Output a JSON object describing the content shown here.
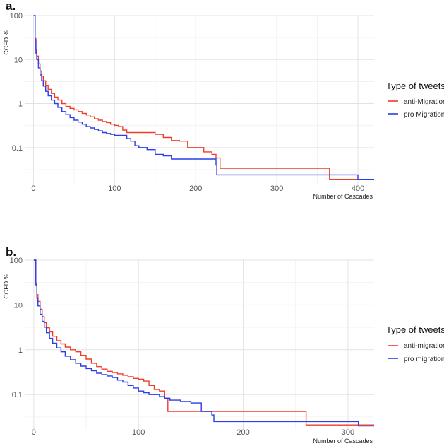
{
  "chart_data": [
    {
      "panel": "a.",
      "type": "line",
      "title": "",
      "xlabel": "Number of Cascades",
      "ylabel": "CCFD %",
      "x_ticks": [
        0,
        100,
        200,
        300,
        400
      ],
      "y_ticks": [
        100,
        10,
        1,
        0.1
      ],
      "y_tick_labels": [
        "100",
        "10",
        "1",
        "0.1"
      ],
      "xlim": [
        -10,
        420
      ],
      "ylim_log": [
        0.014,
        100
      ],
      "legend_title": "Type of tweets",
      "series": [
        {
          "name": "anti-Migration",
          "color": "#f03c2a",
          "x": [
            0,
            2,
            3,
            4,
            6,
            8,
            10,
            12,
            15,
            18,
            22,
            26,
            30,
            35,
            40,
            45,
            50,
            55,
            60,
            65,
            70,
            75,
            80,
            85,
            90,
            95,
            100,
            105,
            110,
            115,
            120,
            130,
            140,
            150,
            160,
            170,
            180,
            190,
            200,
            210,
            220,
            225,
            230,
            240,
            250,
            260,
            300,
            365,
            380,
            420
          ],
          "y": [
            100,
            30,
            17,
            12,
            8,
            5.5,
            4.2,
            3.3,
            2.6,
            2.1,
            1.7,
            1.4,
            1.2,
            1.0,
            0.86,
            0.78,
            0.72,
            0.66,
            0.6,
            0.55,
            0.5,
            0.45,
            0.42,
            0.39,
            0.37,
            0.34,
            0.32,
            0.3,
            0.25,
            0.22,
            0.22,
            0.22,
            0.22,
            0.2,
            0.17,
            0.145,
            0.14,
            0.1,
            0.1,
            0.08,
            0.07,
            0.058,
            0.034,
            0.034,
            0.034,
            0.034,
            0.034,
            0.019,
            0.019,
            0.019
          ]
        },
        {
          "name": "pro Migration",
          "color": "#2a3de8",
          "x": [
            0,
            2,
            3,
            4,
            6,
            8,
            10,
            12,
            15,
            18,
            22,
            26,
            30,
            35,
            40,
            45,
            50,
            55,
            60,
            65,
            70,
            75,
            80,
            85,
            90,
            95,
            100,
            110,
            115,
            120,
            125,
            130,
            140,
            150,
            160,
            170,
            180,
            190,
            200,
            215,
            225,
            226,
            260,
            300,
            360,
            395,
            400,
            420
          ],
          "y": [
            100,
            28,
            14,
            10,
            6.5,
            4.5,
            3.3,
            2.5,
            1.9,
            1.5,
            1.2,
            1.0,
            0.82,
            0.66,
            0.56,
            0.48,
            0.42,
            0.38,
            0.34,
            0.3,
            0.28,
            0.26,
            0.24,
            0.22,
            0.21,
            0.2,
            0.19,
            0.19,
            0.16,
            0.14,
            0.11,
            0.1,
            0.09,
            0.07,
            0.065,
            0.055,
            0.055,
            0.055,
            0.055,
            0.055,
            0.04,
            0.024,
            0.024,
            0.024,
            0.024,
            0.024,
            0.019,
            0.019
          ]
        }
      ]
    },
    {
      "panel": "b.",
      "type": "line",
      "title": "",
      "xlabel": "Number of Cascades",
      "ylabel": "CCFD %",
      "x_ticks": [
        0,
        100,
        200,
        300
      ],
      "y_ticks": [
        100,
        10,
        1,
        0.1
      ],
      "y_tick_labels": [
        "100",
        "10",
        "1",
        "0.1"
      ],
      "xlim": [
        -8,
        325
      ],
      "ylim_log": [
        0.017,
        100
      ],
      "legend_title": "Type of tweets",
      "series": [
        {
          "name": "anti-migration",
          "color": "#f03c2a",
          "x": [
            0,
            2,
            3,
            4,
            6,
            8,
            10,
            12,
            15,
            18,
            22,
            26,
            30,
            35,
            40,
            45,
            50,
            55,
            60,
            65,
            70,
            75,
            80,
            85,
            90,
            95,
            100,
            105,
            110,
            115,
            120,
            125,
            128,
            130,
            150,
            170,
            200,
            245,
            260,
            300,
            325
          ],
          "y": [
            100,
            30,
            17,
            12,
            8,
            5.5,
            4,
            3.1,
            2.5,
            2.0,
            1.6,
            1.35,
            1.15,
            1.0,
            0.9,
            0.75,
            0.62,
            0.5,
            0.42,
            0.37,
            0.33,
            0.31,
            0.29,
            0.27,
            0.25,
            0.23,
            0.22,
            0.2,
            0.16,
            0.13,
            0.12,
            0.083,
            0.042,
            0.042,
            0.042,
            0.042,
            0.042,
            0.042,
            0.021,
            0.021,
            0.021
          ]
        },
        {
          "name": "pro migration",
          "color": "#2a3de8",
          "x": [
            0,
            2,
            3,
            4,
            6,
            8,
            10,
            12,
            15,
            18,
            22,
            26,
            30,
            35,
            40,
            45,
            50,
            55,
            60,
            65,
            70,
            75,
            80,
            85,
            90,
            95,
            100,
            105,
            110,
            120,
            125,
            130,
            140,
            150,
            160,
            170,
            172,
            200,
            250,
            300,
            310,
            325
          ],
          "y": [
            100,
            28,
            14,
            9.5,
            6.2,
            4.3,
            3.2,
            2.4,
            1.8,
            1.4,
            1.1,
            0.9,
            0.72,
            0.6,
            0.5,
            0.43,
            0.38,
            0.34,
            0.3,
            0.28,
            0.26,
            0.24,
            0.21,
            0.19,
            0.16,
            0.14,
            0.12,
            0.11,
            0.1,
            0.09,
            0.083,
            0.075,
            0.07,
            0.065,
            0.042,
            0.035,
            0.025,
            0.025,
            0.025,
            0.025,
            0.02,
            0.02
          ]
        }
      ]
    }
  ]
}
